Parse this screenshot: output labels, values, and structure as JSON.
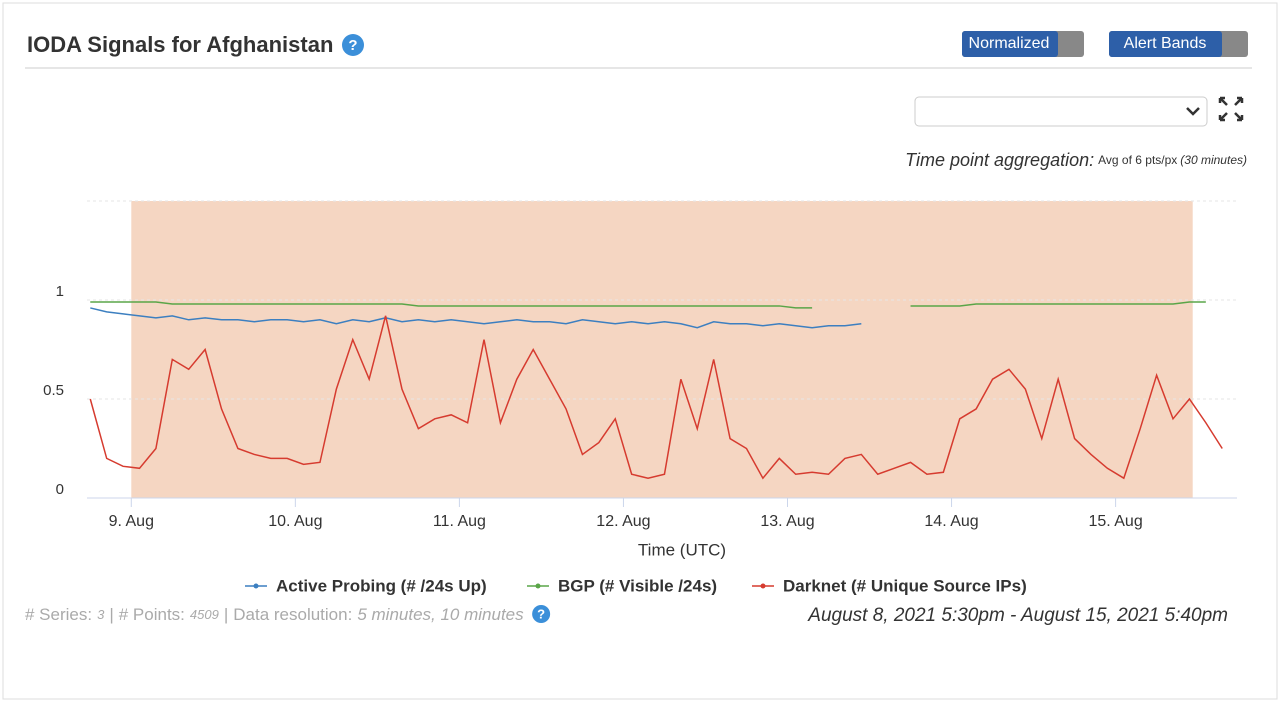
{
  "header": {
    "title": "IODA Signals for Afghanistan",
    "help_icon": "?",
    "toggles": [
      "Normalized",
      "Alert Bands"
    ]
  },
  "aggregation": {
    "label": "Time point aggregation:",
    "value": "Avg of 6 pts/px",
    "period": "(30 minutes)"
  },
  "chart_data": {
    "type": "line",
    "xlabel": "Time (UTC)",
    "x": [
      8.75,
      8.85,
      8.95,
      9.05,
      9.15,
      9.25,
      9.35,
      9.45,
      9.55,
      9.65,
      9.75,
      9.85,
      9.95,
      10.05,
      10.15,
      10.25,
      10.35,
      10.45,
      10.55,
      10.65,
      10.75,
      10.85,
      10.95,
      11.05,
      11.15,
      11.25,
      11.35,
      11.45,
      11.55,
      11.65,
      11.75,
      11.85,
      11.95,
      12.05,
      12.15,
      12.25,
      12.35,
      12.45,
      12.55,
      12.65,
      12.75,
      12.85,
      12.95,
      13.05,
      13.15,
      13.25,
      13.35,
      13.45,
      13.55,
      13.65,
      13.75,
      13.85,
      13.95,
      14.05,
      14.15,
      14.25,
      14.35,
      14.45,
      14.55,
      14.65,
      14.75,
      14.85,
      14.95,
      15.05,
      15.15,
      15.25,
      15.35,
      15.45,
      15.55,
      15.65
    ],
    "series": [
      {
        "name": "Active Probing (# /24s Up)",
        "color": "#3c7fc0",
        "values": [
          0.96,
          0.94,
          0.93,
          0.92,
          0.91,
          0.92,
          0.9,
          0.91,
          0.9,
          0.9,
          0.89,
          0.9,
          0.9,
          0.89,
          0.9,
          0.88,
          0.9,
          0.89,
          0.91,
          0.89,
          0.9,
          0.89,
          0.9,
          0.89,
          0.88,
          0.89,
          0.9,
          0.89,
          0.89,
          0.88,
          0.9,
          0.89,
          0.88,
          0.89,
          0.88,
          0.89,
          0.88,
          0.86,
          0.89,
          0.88,
          0.88,
          0.87,
          0.88,
          0.87,
          0.86,
          0.87,
          0.87,
          0.88,
          null,
          null,
          null,
          null,
          null,
          null,
          null,
          null,
          null,
          null,
          null,
          null,
          null,
          null,
          null,
          null,
          null,
          null,
          null,
          null,
          null,
          null
        ]
      },
      {
        "name": "BGP (# Visible /24s)",
        "color": "#5aa548",
        "values": [
          0.99,
          0.99,
          0.99,
          0.99,
          0.99,
          0.98,
          0.98,
          0.98,
          0.98,
          0.98,
          0.98,
          0.98,
          0.98,
          0.98,
          0.98,
          0.98,
          0.98,
          0.98,
          0.98,
          0.98,
          0.97,
          0.97,
          0.97,
          0.97,
          0.97,
          0.97,
          0.97,
          0.97,
          0.97,
          0.97,
          0.97,
          0.97,
          0.97,
          0.97,
          0.97,
          0.97,
          0.97,
          0.97,
          0.97,
          0.97,
          0.97,
          0.97,
          0.97,
          0.96,
          0.96,
          null,
          null,
          null,
          null,
          null,
          0.97,
          0.97,
          0.97,
          0.97,
          0.98,
          0.98,
          0.98,
          0.98,
          0.98,
          0.98,
          0.98,
          0.98,
          0.98,
          0.98,
          0.98,
          0.98,
          0.98,
          0.99,
          0.99,
          null
        ]
      },
      {
        "name": "Darknet (# Unique Source IPs)",
        "color": "#d63b2f",
        "values": [
          0.5,
          0.2,
          0.16,
          0.15,
          0.25,
          0.7,
          0.65,
          0.75,
          0.45,
          0.25,
          0.22,
          0.2,
          0.2,
          0.17,
          0.18,
          0.55,
          0.8,
          0.6,
          0.92,
          0.55,
          0.35,
          0.4,
          0.42,
          0.38,
          0.8,
          0.38,
          0.6,
          0.75,
          0.6,
          0.45,
          0.22,
          0.28,
          0.4,
          0.12,
          0.1,
          0.12,
          0.6,
          0.35,
          0.7,
          0.3,
          0.25,
          0.1,
          0.2,
          0.12,
          0.13,
          0.12,
          0.2,
          0.22,
          0.12,
          0.15,
          0.18,
          0.12,
          0.13,
          0.4,
          0.45,
          0.6,
          0.65,
          0.55,
          0.3,
          0.6,
          0.3,
          0.22,
          0.15,
          0.1,
          0.35,
          0.62,
          0.4,
          0.5,
          0.38,
          0.25
        ]
      }
    ],
    "xlim": [
      8.73,
      15.74
    ],
    "xticks": [
      {
        "value": 9,
        "label": "9. Aug"
      },
      {
        "value": 10,
        "label": "10. Aug"
      },
      {
        "value": 11,
        "label": "11. Aug"
      },
      {
        "value": 12,
        "label": "12. Aug"
      },
      {
        "value": 13,
        "label": "13. Aug"
      },
      {
        "value": 14,
        "label": "14. Aug"
      },
      {
        "value": 15,
        "label": "15. Aug"
      }
    ],
    "ylim": [
      0,
      1.5
    ],
    "yticks": [
      0,
      0.5,
      1
    ],
    "grid": true,
    "alert_band": {
      "x": [
        9.0,
        15.47
      ],
      "color": "#f5d6c2"
    }
  },
  "footer": {
    "separator": "|",
    "stats": [
      {
        "label": "# Series:",
        "value": "3"
      },
      {
        "label": "# Points:",
        "value": "4509"
      },
      {
        "label": "Data resolution:",
        "value": "5 minutes, 10 minutes"
      }
    ],
    "date_range": "August 8, 2021 5:30pm - August 15, 2021 5:40pm"
  }
}
